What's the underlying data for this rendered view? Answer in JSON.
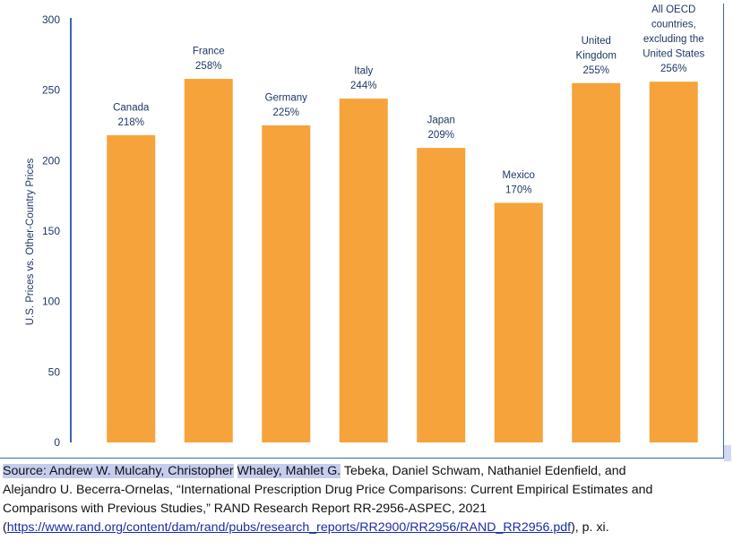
{
  "chart_data": {
    "type": "bar",
    "title": "",
    "xlabel": "",
    "ylabel": "U.S. Prices vs. Other-Country Prices",
    "ylim": [
      0,
      300
    ],
    "yticks": [
      0,
      50,
      100,
      150,
      200,
      250,
      300
    ],
    "yticks_text": [
      "0",
      "50",
      "100",
      "150",
      "200",
      "250",
      "300"
    ],
    "grid": false,
    "legend": "none",
    "bar_color": "#f5a33a",
    "axis_color": "#3a64b8",
    "categories": [
      [
        "Canada"
      ],
      [
        "France"
      ],
      [
        "Germany"
      ],
      [
        "Italy"
      ],
      [
        "Japan"
      ],
      [
        "Mexico"
      ],
      [
        "United",
        "Kingdom"
      ],
      [
        "All OECD",
        "countries,",
        "excluding the",
        "United States"
      ]
    ],
    "values": [
      218,
      258,
      225,
      244,
      209,
      170,
      255,
      256
    ],
    "value_labels": [
      "218%",
      "258%",
      "225%",
      "244%",
      "209%",
      "170%",
      "255%",
      "256%"
    ]
  },
  "source": {
    "line1_hl1": "Source: Andrew W. Mulcahy, Christopher",
    "line1_hl2": "Whaley, Mahlet G.",
    "line1_rest": "Tebeka, Daniel Schwam, Nathaniel Edenfield, and",
    "line2": "Alejandro U. Becerra-Ornelas, “International Prescription Drug Price Comparisons: Current Empirical Estimates and",
    "line3": "Comparisons with Previous Studies,” RAND Research Report RR-2956-ASPEC, 2021",
    "line4_open": "(",
    "line4_link": "https://www.rand.org/content/dam/rand/pubs/research_reports/RR2900/RR2956/RAND_RR2956.pdf",
    "line4_close": "), p. xi."
  },
  "colors": {
    "highlight": "#c5ccee",
    "link": "#1a2ea8"
  }
}
